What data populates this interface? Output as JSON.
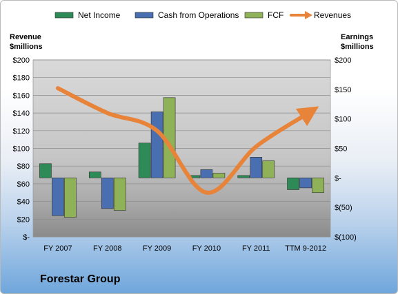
{
  "company_name": "Forestar Group",
  "colors": {
    "net_income": "#2e8b57",
    "cash_from_operations": "#4a6fb0",
    "fcf": "#8fb157",
    "revenues": "#e8833a",
    "plot_background": "#c8c8c8"
  },
  "chart_data": {
    "type": "bar",
    "title": "",
    "categories": [
      "FY 2007",
      "FY 2008",
      "FY 2009",
      "FY 2010",
      "FY 2011",
      "TTM 9-2012"
    ],
    "y_left": {
      "label_line1": "Revenue",
      "label_line2": "$millions",
      "range": [
        0,
        200
      ],
      "ticks": [
        0,
        20,
        40,
        60,
        80,
        100,
        120,
        140,
        160,
        180,
        200
      ],
      "tick_labels": [
        "$-",
        "$20",
        "$40",
        "$60",
        "$80",
        "$100",
        "$120",
        "$140",
        "$160",
        "$180",
        "$200"
      ]
    },
    "y_right": {
      "label_line1": "Earnings",
      "label_line2": "$millions",
      "range": [
        -100,
        200
      ],
      "ticks": [
        -100,
        -50,
        0,
        50,
        100,
        150,
        200
      ],
      "tick_labels": [
        "$(100)",
        "$(50)",
        "$-",
        "$50",
        "$100",
        "$150",
        "$200"
      ]
    },
    "series": [
      {
        "name": "Net Income",
        "type": "bar",
        "axis": "right",
        "color": "#2e8b57",
        "values": [
          24,
          10,
          59,
          4,
          4,
          -20
        ]
      },
      {
        "name": "Cash from Operations",
        "type": "bar",
        "axis": "right",
        "color": "#4a6fb0",
        "values": [
          -64,
          -52,
          112,
          14,
          35,
          -17
        ]
      },
      {
        "name": "FCF",
        "type": "bar",
        "axis": "right",
        "color": "#8fb157",
        "values": [
          -67,
          -55,
          136,
          8,
          29,
          -25
        ]
      },
      {
        "name": "Revenues",
        "type": "line",
        "axis": "left",
        "color": "#e8833a",
        "values": [
          168,
          140,
          120,
          50,
          102,
          138
        ]
      }
    ],
    "legend_position": "top",
    "grid": true
  }
}
